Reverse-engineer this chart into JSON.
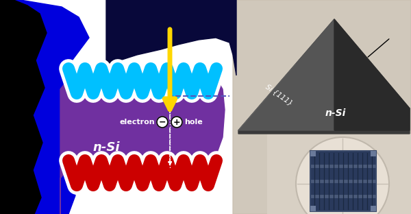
{
  "fig_width": 6.0,
  "fig_height": 3.12,
  "bg_color": "#ffffff",
  "blue_blob_color": "#0000dd",
  "dark_navy_color": "#08083a",
  "purple_color": "#7030a0",
  "cyan_color": "#00c0ff",
  "red_color": "#cc0000",
  "yellow_color": "#ffd700",
  "gray_sem_color": "#b0a090",
  "nSi_label": "n-Si",
  "electron_label": "electron",
  "hole_label": "hole",
  "si111_label": "Si {111}",
  "nSi_photo_label": "n-Si"
}
